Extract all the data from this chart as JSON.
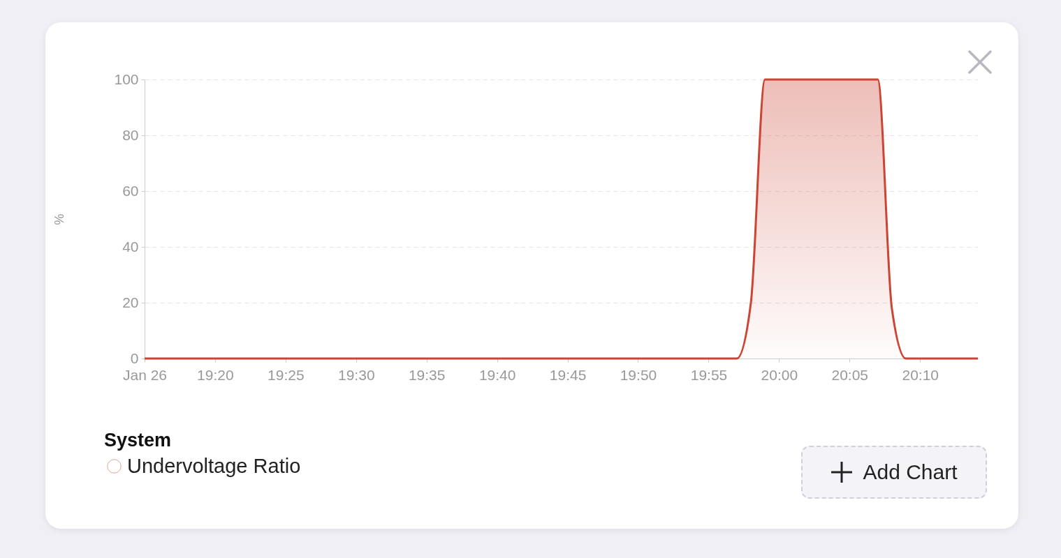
{
  "chart_data": {
    "type": "area",
    "ylabel": "%",
    "legend_title": "System",
    "legend": "bottom left",
    "grid": "y",
    "line_style": "solid",
    "marker": "none",
    "x": [
      19.25,
      19.95,
      19.9667,
      19.9833,
      20.1167,
      20.1333,
      20.15,
      20.235
    ],
    "series": [
      {
        "name": "Undervoltage Ratio",
        "color": "#cc4433",
        "values": [
          0,
          0,
          20,
          100,
          100,
          18,
          0,
          0
        ]
      }
    ],
    "xlim": [
      19.25,
      20.235
    ],
    "xticks": [
      {
        "value": 19.25,
        "label": "Jan 26"
      },
      {
        "value": 19.3333,
        "label": "19:20"
      },
      {
        "value": 19.4167,
        "label": "19:25"
      },
      {
        "value": 19.5,
        "label": "19:30"
      },
      {
        "value": 19.5833,
        "label": "19:35"
      },
      {
        "value": 19.6667,
        "label": "19:40"
      },
      {
        "value": 19.75,
        "label": "19:45"
      },
      {
        "value": 19.8333,
        "label": "19:50"
      },
      {
        "value": 19.9167,
        "label": "19:55"
      },
      {
        "value": 20,
        "label": "20:00"
      },
      {
        "value": 20.0833,
        "label": "20:05"
      },
      {
        "value": 20.1667,
        "label": "20:10"
      }
    ],
    "ylim": [
      0,
      100
    ],
    "yticks": [
      0,
      20,
      40,
      60,
      80,
      100
    ],
    "annotations": [
      "Add Chart"
    ]
  }
}
